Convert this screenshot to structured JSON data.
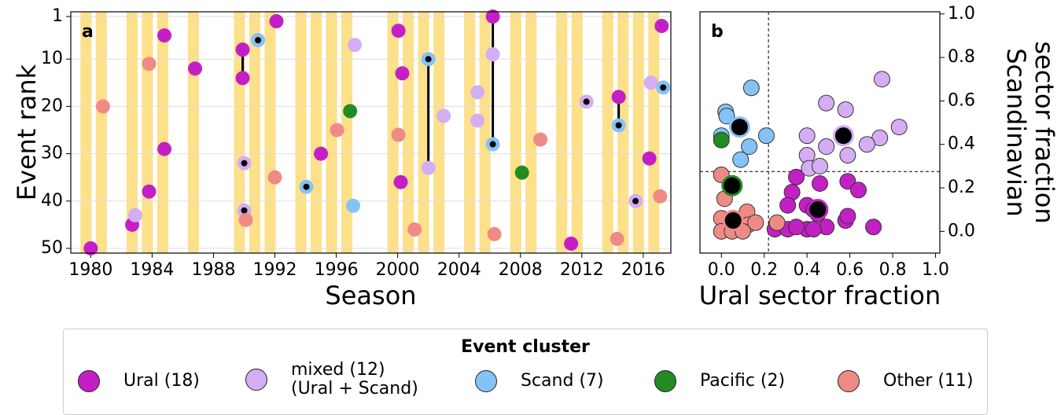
{
  "chart_data": [
    {
      "type": "scatter",
      "panel": "a",
      "xlabel": "Season",
      "ylabel": "Event rank",
      "xlim": [
        1978.7,
        2017.8
      ],
      "ylim": [
        51,
        0
      ],
      "xticks": [
        1980,
        1984,
        1988,
        1992,
        1996,
        2000,
        2004,
        2008,
        2012,
        2016
      ],
      "yticks": [
        1,
        10,
        20,
        30,
        40,
        50
      ],
      "grid": true,
      "highlight_seasons": [
        1980,
        1981,
        1983,
        1984,
        1985,
        1987,
        1990,
        1991,
        1992,
        1994,
        1995,
        1996,
        1997,
        2000,
        2001,
        2002,
        2003,
        2005,
        2006,
        2008,
        2009,
        2011,
        2012,
        2014,
        2015,
        2016,
        2017
      ],
      "highlight_color": "#fde08a",
      "legend_title": "Event cluster",
      "series": [
        {
          "name": "Ural (18)",
          "color": "#c41fc4",
          "x": [
            1980,
            1982.7,
            1984.8,
            1984.8,
            1983.8,
            1986.8,
            1989.9,
            1989.9,
            1992.1,
            1995.0,
            2000.05,
            2000.3,
            2000.2,
            2006.2,
            2011.3,
            2014.4,
            2016.4,
            2017.2
          ],
          "values": [
            50,
            45,
            5,
            29,
            38,
            12,
            8,
            14,
            2,
            30,
            4,
            13,
            36,
            1,
            49,
            18,
            31,
            3
          ],
          "dotted": [
            false,
            false,
            false,
            false,
            false,
            false,
            false,
            false,
            false,
            false,
            false,
            false,
            false,
            false,
            false,
            false,
            false,
            false
          ]
        },
        {
          "name": "mixed (12)\n(Ural + Scand)",
          "color": "#d5adf5",
          "x": [
            1982.9,
            1997.2,
            1990.0,
            1990.0,
            2002.0,
            2003.0,
            2005.2,
            2005.2,
            2006.2,
            2012.3,
            2015.5,
            2016.5
          ],
          "values": [
            43,
            7,
            32,
            42,
            33,
            22,
            17,
            23,
            9,
            19,
            40,
            15
          ],
          "dotted": [
            false,
            false,
            true,
            true,
            false,
            false,
            false,
            false,
            false,
            true,
            true,
            false
          ]
        },
        {
          "name": "Scand (7)",
          "color": "#85c2f7",
          "x": [
            1990.9,
            1994.05,
            1997.1,
            2002.0,
            2006.2,
            2014.4,
            2017.3
          ],
          "values": [
            6,
            37,
            41,
            10,
            28,
            24,
            16
          ],
          "dotted": [
            true,
            true,
            false,
            true,
            true,
            true,
            true
          ]
        },
        {
          "name": "Pacific (2)",
          "color": "#228b22",
          "x": [
            1996.9,
            2008.1
          ],
          "values": [
            21,
            34
          ],
          "dotted": [
            false,
            false
          ]
        },
        {
          "name": "Other (11)",
          "color": "#f08a85",
          "x": [
            1980.8,
            1983.8,
            1990.1,
            1992.0,
            1996.05,
            2000.05,
            2001.1,
            2006.3,
            2009.3,
            2014.3,
            2017.1
          ],
          "values": [
            20,
            11,
            44,
            35,
            25,
            26,
            46,
            47,
            27,
            48,
            39
          ],
          "dotted": [
            false,
            false,
            false,
            false,
            false,
            false,
            false,
            false,
            false,
            false,
            false
          ]
        }
      ],
      "links": [
        {
          "x": 1989.9,
          "ranks": [
            8,
            14
          ]
        },
        {
          "x": 2002.0,
          "ranks": [
            10,
            33
          ]
        },
        {
          "x": 2006.2,
          "ranks": [
            1,
            28
          ]
        },
        {
          "x": 2014.4,
          "ranks": [
            18,
            24
          ]
        }
      ]
    },
    {
      "type": "scatter",
      "panel": "b",
      "xlabel": "Ural sector fraction",
      "ylabel": [
        "Scandinavian",
        "sector fraction"
      ],
      "xlim": [
        -0.1,
        1.02
      ],
      "ylim": [
        -0.1,
        1.01
      ],
      "xticks": [
        {
          "value": 0,
          "label": "0.0"
        },
        {
          "value": 0.2,
          "label": "0.2"
        },
        {
          "value": 0.4,
          "label": "0.4"
        },
        {
          "value": 0.6,
          "label": "0.6"
        },
        {
          "value": 0.8,
          "label": "0.8"
        },
        {
          "value": 1,
          "label": "1.0"
        }
      ],
      "yticks": [
        {
          "value": 0,
          "label": "0.0"
        },
        {
          "value": 0.2,
          "label": "0.2"
        },
        {
          "value": 0.4,
          "label": "0.4"
        },
        {
          "value": 0.6,
          "label": "0.6"
        },
        {
          "value": 0.8,
          "label": "0.8"
        },
        {
          "value": 1,
          "label": "1.0"
        }
      ],
      "threshold_x": 0.22,
      "threshold_y": 0.275,
      "series": [
        {
          "color": "#c41fc4",
          "x": [
            0.35,
            0.46,
            0.59,
            0.64,
            0.33,
            0.31,
            0.4,
            0.25,
            0.31,
            0.4,
            0.49,
            0.58,
            0.59,
            0.71,
            0.43,
            0.45,
            0.35,
            0.43
          ],
          "values": [
            0.25,
            0.22,
            0.23,
            0.19,
            0.18,
            0.12,
            0.12,
            0.01,
            0.01,
            0.01,
            0.02,
            0.05,
            0.07,
            0.02,
            0.1,
            0.08,
            0.02,
            0.01
          ]
        },
        {
          "color": "#d5adf5",
          "x": [
            0.75,
            0.49,
            0.58,
            0.83,
            0.4,
            0.49,
            0.74,
            0.68,
            0.4,
            0.59,
            0.41,
            0.46
          ],
          "values": [
            0.7,
            0.59,
            0.56,
            0.48,
            0.44,
            0.39,
            0.43,
            0.4,
            0.35,
            0.35,
            0.29,
            0.3
          ]
        },
        {
          "color": "#85c2f7",
          "x": [
            0.14,
            0.02,
            0.025,
            0.0,
            0.13,
            0.21,
            0.09
          ],
          "values": [
            0.66,
            0.55,
            0.53,
            0.44,
            0.39,
            0.44,
            0.33
          ]
        },
        {
          "color": "#228b22",
          "x": [
            0.0,
            0.085
          ],
          "values": [
            0.42,
            0.03
          ]
        },
        {
          "color": "#f08a85",
          "x": [
            0.0,
            0.015,
            0.0,
            0.055,
            0.12,
            0.125,
            0.16,
            0.26,
            0.0,
            0.05,
            0.1
          ],
          "values": [
            0.26,
            0.15,
            0.06,
            0.06,
            0.09,
            0.03,
            0.04,
            0.04,
            0.0,
            0.0,
            0.0
          ]
        }
      ],
      "highlighted": {
        "color": "#000000",
        "edge_colors": [
          "#85c2f7",
          "#d5adf5",
          "#c41fc4",
          "#228b22",
          "#f08a85"
        ],
        "x": [
          0.085,
          0.57,
          0.45,
          0.05,
          0.055
        ],
        "values": [
          0.48,
          0.44,
          0.1,
          0.21,
          0.05
        ]
      }
    }
  ]
}
